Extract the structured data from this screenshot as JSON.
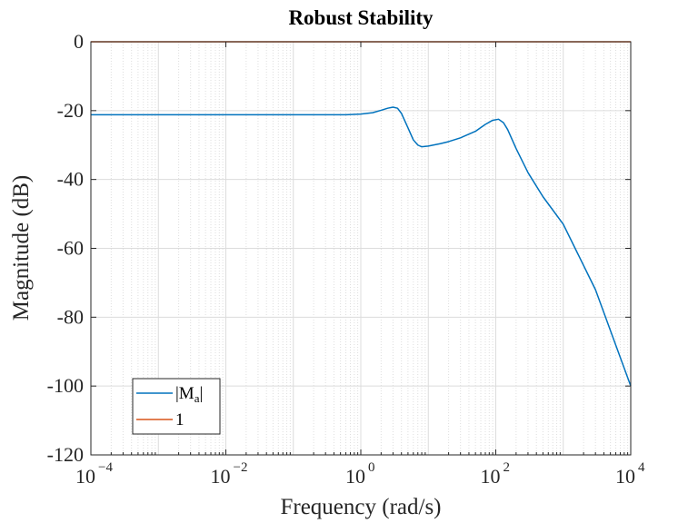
{
  "chart_data": {
    "type": "line",
    "title": "Robust Stability",
    "xlabel": "Frequency (rad/s)",
    "ylabel": "Magnitude (dB)",
    "xscale": "log",
    "xlim": [
      0.0001,
      10000
    ],
    "ylim": [
      -120,
      0
    ],
    "x_ticks": [
      {
        "value": 0.0001,
        "base": "10",
        "exp": "−4"
      },
      {
        "value": 0.01,
        "base": "10",
        "exp": "−2"
      },
      {
        "value": 1,
        "base": "10",
        "exp": "0"
      },
      {
        "value": 100,
        "base": "10",
        "exp": "2"
      },
      {
        "value": 10000,
        "base": "10",
        "exp": "4"
      }
    ],
    "y_ticks": [
      {
        "value": 0,
        "label": "0"
      },
      {
        "value": -20,
        "label": "-20"
      },
      {
        "value": -40,
        "label": "-40"
      },
      {
        "value": -60,
        "label": "-60"
      },
      {
        "value": -80,
        "label": "-80"
      },
      {
        "value": -100,
        "label": "-100"
      },
      {
        "value": -120,
        "label": "-120"
      }
    ],
    "grid": true,
    "minor_grid": true,
    "legend": {
      "location": "bottom-left",
      "entries": [
        {
          "series": 0,
          "label_prefix": "|M",
          "label_sub": "a",
          "label_suffix": "|"
        },
        {
          "series": 1,
          "label": "1"
        }
      ]
    },
    "series": [
      {
        "name": "|Ma|",
        "color": "#0072bd",
        "x": [
          0.0001,
          0.001,
          0.01,
          0.1,
          0.3,
          0.6,
          1,
          1.5,
          2,
          2.5,
          3,
          3.5,
          4,
          5,
          6,
          7,
          8,
          10,
          15,
          20,
          30,
          50,
          70,
          90,
          110,
          130,
          150,
          200,
          300,
          500,
          1000,
          3000,
          10000
        ],
        "y": [
          -21.2,
          -21.2,
          -21.2,
          -21.2,
          -21.2,
          -21.2,
          -21.0,
          -20.6,
          -19.9,
          -19.3,
          -19.0,
          -19.3,
          -20.8,
          -25.0,
          -28.5,
          -30.0,
          -30.5,
          -30.3,
          -29.6,
          -29.0,
          -27.9,
          -26.0,
          -24.0,
          -22.8,
          -22.5,
          -23.5,
          -25.5,
          -31.0,
          -38.0,
          -45.0,
          -53.0,
          -72.0,
          -100.0
        ]
      },
      {
        "name": "1",
        "color": "#d95319",
        "x": [
          0.0001,
          10000
        ],
        "y": [
          0,
          0
        ]
      }
    ]
  }
}
